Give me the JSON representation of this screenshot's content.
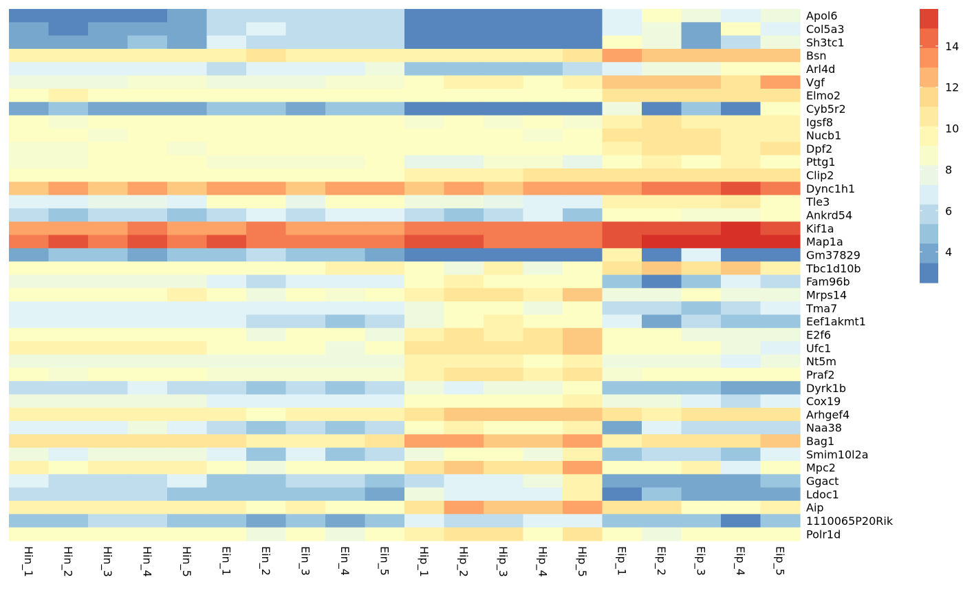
{
  "chart_data": {
    "type": "heatmap",
    "title": "",
    "xlabel": "",
    "ylabel": "",
    "columns": [
      "Hin_1",
      "Hin_2",
      "Hin_3",
      "Hin_4",
      "Hin_5",
      "Ein_1",
      "Ein_2",
      "Ein_3",
      "Ein_4",
      "Ein_5",
      "Hip_1",
      "Hip_2",
      "Hip_3",
      "Hip_4",
      "Hip_5",
      "Eip_1",
      "Eip_2",
      "Eip_3",
      "Eip_4",
      "Eip_5"
    ],
    "rows": [
      "Apol6",
      "Col5a3",
      "Sh3tc1",
      "Bsn",
      "Arl4d",
      "Vgf",
      "Elmo2",
      "Cyb5r2",
      "Igsf8",
      "Nucb1",
      "Dpf2",
      "Pttg1",
      "Clip2",
      "Dync1h1",
      "Tle3",
      "Ankrd54",
      "Kif1a",
      "Map1a",
      "Gm37829",
      "Tbc1d10b",
      "Fam96b",
      "Mrps14",
      "Tma7",
      "Eef1akmt1",
      "E2f6",
      "Ufc1",
      "Nt5m",
      "Praf2",
      "Dyrk1b",
      "Cox19",
      "Arhgef4",
      "Naa38",
      "Bag1",
      "Smim10l2a",
      "Mpc2",
      "Ggact",
      "Ldoc1",
      "Aip",
      "1110065P20Rik",
      "Polr1d"
    ],
    "values": [
      [
        3,
        3,
        3,
        3,
        4,
        6,
        6,
        6,
        6,
        6,
        3,
        3,
        3,
        3,
        3,
        7,
        9,
        8,
        7,
        8
      ],
      [
        4,
        3,
        4,
        4,
        4,
        6,
        7,
        6,
        6,
        6,
        3,
        3,
        3,
        3,
        3,
        7,
        8,
        4,
        9,
        7
      ],
      [
        4,
        4,
        4,
        5,
        4,
        7,
        6,
        6,
        6,
        6,
        3,
        3,
        3,
        3,
        3,
        9,
        8,
        4,
        6,
        8
      ],
      [
        10,
        10,
        10,
        10,
        10,
        10,
        11,
        10,
        10,
        10,
        10,
        10,
        10,
        10,
        11,
        13,
        12,
        12,
        12,
        12
      ],
      [
        7,
        7,
        7,
        7,
        7,
        6,
        7,
        7,
        7,
        8,
        5,
        5,
        5,
        5,
        6,
        7,
        8,
        8,
        9,
        9
      ],
      [
        8,
        8,
        8,
        8.5,
        8.5,
        8,
        8,
        8,
        8.5,
        8.5,
        9,
        10,
        10,
        9,
        10,
        12,
        12,
        12,
        11,
        13
      ],
      [
        9,
        10,
        9,
        9,
        9,
        9,
        9,
        9,
        9,
        9,
        9,
        9,
        9,
        9,
        9,
        11,
        11,
        11,
        11,
        11
      ],
      [
        4,
        5,
        4,
        4,
        4,
        5,
        5,
        4,
        5,
        5,
        3,
        3,
        3,
        3,
        3,
        8,
        3,
        5,
        3,
        9
      ],
      [
        9,
        8.5,
        9,
        9,
        9,
        9,
        9,
        9,
        9,
        9,
        8.5,
        9,
        8.5,
        9,
        8.5,
        10,
        11,
        10,
        10,
        10
      ],
      [
        9,
        9,
        8.5,
        9,
        9,
        9,
        9,
        9,
        9,
        9,
        9,
        9,
        9,
        8.5,
        9,
        11,
        11,
        11,
        10,
        10
      ],
      [
        8.5,
        8.5,
        9,
        9,
        8.5,
        9,
        9,
        9,
        9,
        9,
        9,
        9,
        9,
        9,
        9,
        10,
        11,
        11,
        10,
        11
      ],
      [
        8.5,
        8.5,
        9,
        9,
        9,
        8.5,
        8.5,
        8.5,
        8.5,
        9,
        7.5,
        7.5,
        8.5,
        8.5,
        7.5,
        9,
        10,
        9,
        10,
        9
      ],
      [
        9,
        9,
        9,
        9,
        9,
        9,
        9,
        9,
        9,
        9,
        10,
        10,
        10,
        11,
        11,
        11,
        11,
        11,
        11,
        11
      ],
      [
        12,
        13,
        12,
        13,
        12,
        13,
        13,
        12,
        13,
        13,
        12,
        13,
        12,
        13,
        13,
        13,
        14,
        14,
        15,
        14
      ],
      [
        7,
        7,
        7.5,
        7.5,
        7,
        9,
        9,
        7.5,
        9,
        9,
        8,
        8,
        7.5,
        7,
        7,
        10,
        10,
        10,
        10.5,
        9
      ],
      [
        6,
        5,
        6,
        6,
        5,
        6,
        7,
        6,
        7,
        7,
        6,
        5,
        6,
        7,
        5,
        9,
        9,
        8.5,
        8.5,
        9
      ],
      [
        13,
        13,
        13,
        14,
        13,
        13,
        14,
        13,
        13,
        13,
        14,
        14,
        14,
        14,
        14,
        15,
        15,
        15,
        16,
        15
      ],
      [
        14,
        15,
        14,
        15,
        14,
        15,
        14,
        14,
        14,
        14,
        15,
        15,
        14,
        14,
        14,
        15,
        16,
        16,
        16,
        16
      ],
      [
        4,
        5,
        5,
        4,
        5,
        5,
        6,
        5,
        5,
        4,
        3,
        3,
        3,
        3,
        3,
        10,
        3,
        7,
        3,
        3
      ],
      [
        9,
        9,
        9,
        9,
        9,
        9,
        9,
        9,
        10,
        10,
        9,
        8,
        10,
        8,
        9,
        11,
        12,
        11,
        12,
        10
      ],
      [
        8,
        8,
        8,
        8,
        8,
        7,
        6,
        7,
        7,
        7,
        9,
        10,
        9,
        9,
        9,
        5,
        3,
        5,
        7,
        6
      ],
      [
        9,
        9,
        9,
        9,
        10,
        9,
        8,
        9,
        8.5,
        9,
        10,
        11,
        11,
        10,
        12,
        8,
        8,
        9,
        8,
        8
      ],
      [
        7,
        7,
        7,
        7,
        7,
        7,
        7,
        7,
        7,
        7,
        8,
        9,
        9,
        8,
        9,
        6,
        6,
        5,
        6,
        7
      ],
      [
        7,
        7,
        7,
        7,
        7,
        7,
        6,
        6,
        5,
        6,
        8,
        9,
        10,
        9,
        9,
        7,
        4,
        6,
        5,
        5
      ],
      [
        9,
        9,
        9,
        9,
        9,
        9,
        8,
        9,
        9,
        8,
        10,
        11,
        10,
        11,
        12,
        9,
        9,
        8,
        8,
        8
      ],
      [
        10,
        10,
        10,
        10,
        10,
        9,
        9,
        9,
        8,
        9,
        11,
        11,
        11,
        11,
        12,
        9,
        9,
        9,
        8,
        7
      ],
      [
        8,
        8,
        8,
        8,
        8,
        8,
        8,
        8,
        8,
        8,
        10,
        10,
        10,
        9,
        10,
        8,
        8,
        8,
        7,
        8
      ],
      [
        9,
        8.5,
        9,
        9,
        9,
        8.5,
        8.5,
        8.5,
        8.5,
        8.5,
        10,
        11,
        11,
        10,
        11,
        8.5,
        9,
        9,
        9,
        9
      ],
      [
        6,
        6,
        6,
        7,
        6,
        6,
        5,
        6,
        5,
        6,
        8,
        7,
        8,
        8,
        9,
        5,
        5,
        5,
        4,
        4
      ],
      [
        8,
        8,
        8,
        8,
        8,
        7,
        7,
        7,
        7,
        7,
        9,
        9,
        9,
        9,
        10,
        8,
        8,
        7,
        6,
        7
      ],
      [
        10,
        10,
        10,
        10,
        10,
        10,
        9,
        10,
        10,
        10,
        11,
        12,
        12,
        12,
        12,
        11,
        10,
        11,
        11,
        11
      ],
      [
        7,
        7,
        7,
        8,
        7,
        6,
        5,
        6,
        5,
        6,
        9,
        10,
        9,
        9,
        10,
        4,
        7,
        6,
        6,
        6
      ],
      [
        11,
        11,
        11,
        11,
        11,
        11,
        10,
        10,
        10,
        11,
        13,
        13,
        12,
        12,
        13,
        10,
        11,
        11,
        11,
        12
      ],
      [
        8,
        7,
        8,
        8,
        8,
        7,
        5,
        7,
        5,
        6,
        8,
        9,
        9,
        8,
        10,
        5,
        6,
        6,
        5,
        7
      ],
      [
        10,
        9,
        10,
        10,
        10,
        9,
        8,
        9,
        9,
        9,
        11,
        12,
        11,
        11,
        13,
        9,
        9,
        10,
        7,
        9
      ],
      [
        7,
        6,
        6,
        6,
        7,
        5,
        5,
        6,
        6,
        5,
        6,
        7,
        7,
        8,
        10,
        4,
        4,
        4,
        4,
        5
      ],
      [
        6,
        6,
        6,
        6,
        5,
        5,
        5,
        5,
        5,
        4,
        8,
        7,
        7,
        7,
        10,
        3,
        5,
        4,
        4,
        4
      ],
      [
        10,
        10,
        10,
        10,
        10,
        10,
        9,
        10,
        9,
        9,
        11,
        13,
        12,
        12,
        13,
        11,
        11,
        9,
        9,
        10
      ],
      [
        5,
        5,
        6,
        6,
        5,
        5,
        4,
        5,
        4,
        5,
        7,
        6,
        6,
        7,
        7,
        5,
        5,
        5,
        3,
        5
      ],
      [
        9,
        9,
        9,
        9,
        9,
        9,
        8,
        9,
        8,
        9,
        10,
        11,
        11,
        9,
        11,
        9,
        8,
        9,
        9,
        9
      ]
    ],
    "colorscale": [
      "#4575B4",
      "#91BFDB",
      "#E0F3F8",
      "#FFFFBF",
      "#FEE090",
      "#FC8D59",
      "#D73027"
    ],
    "zlim": [
      2.5,
      15.8
    ],
    "legend_ticks": [
      4,
      6,
      8,
      10,
      12,
      14
    ],
    "legend_position": "right"
  }
}
